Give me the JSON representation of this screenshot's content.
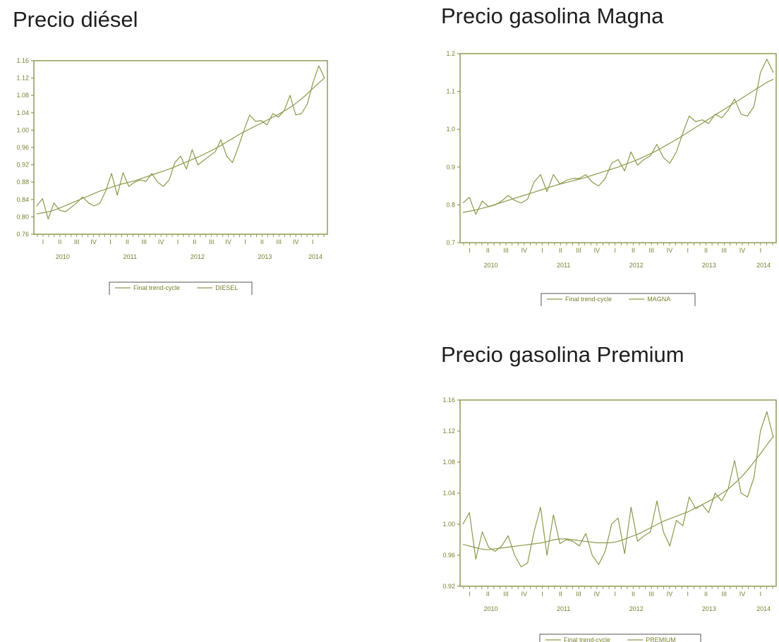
{
  "colors": {
    "series": "#8a9a4a",
    "frame": "#7f8a3a",
    "text": "#7a7f2e",
    "title": "#1e1e1e"
  },
  "chart_data": [
    {
      "type": "line",
      "title": "Precio diésel",
      "ylim": [
        0.76,
        1.16
      ],
      "yticks": [
        0.76,
        0.8,
        0.84,
        0.88,
        0.92,
        0.96,
        1.0,
        1.04,
        1.08,
        1.12,
        1.16
      ],
      "ytick_labels": [
        "0.76",
        "0.80",
        "0.84",
        "0.88",
        "0.92",
        "0.96",
        "1.00",
        "1.04",
        "1.08",
        "1.12",
        "1.16"
      ],
      "quarter_labels": [
        "I",
        "II",
        "III",
        "IV",
        "I",
        "II",
        "III",
        "IV",
        "I",
        "II",
        "III",
        "IV",
        "I",
        "II",
        "III",
        "IV",
        "I"
      ],
      "years": [
        "2010",
        "2011",
        "2012",
        "2013",
        "2014"
      ],
      "grid": false,
      "legend_position": "bottom",
      "series": [
        {
          "name": "Final trend-cycle",
          "values": [
            0.807,
            0.809,
            0.811,
            0.814,
            0.818,
            0.823,
            0.828,
            0.833,
            0.838,
            0.843,
            0.848,
            0.853,
            0.858,
            0.862,
            0.866,
            0.87,
            0.874,
            0.877,
            0.88,
            0.883,
            0.887,
            0.891,
            0.895,
            0.899,
            0.903,
            0.907,
            0.911,
            0.916,
            0.921,
            0.926,
            0.931,
            0.936,
            0.941,
            0.947,
            0.953,
            0.959,
            0.966,
            0.973,
            0.98,
            0.987,
            0.994,
            1.0,
            1.006,
            1.012,
            1.018,
            1.024,
            1.03,
            1.036,
            1.043,
            1.05,
            1.058,
            1.067,
            1.077,
            1.088,
            1.099,
            1.11,
            1.12
          ]
        },
        {
          "name": "DIESEL",
          "values": [
            0.825,
            0.842,
            0.795,
            0.832,
            0.815,
            0.812,
            0.822,
            0.833,
            0.846,
            0.832,
            0.825,
            0.832,
            0.86,
            0.9,
            0.85,
            0.902,
            0.87,
            0.88,
            0.885,
            0.882,
            0.9,
            0.88,
            0.87,
            0.885,
            0.925,
            0.94,
            0.91,
            0.955,
            0.92,
            0.93,
            0.94,
            0.95,
            0.978,
            0.94,
            0.925,
            0.96,
            1.0,
            1.035,
            1.02,
            1.022,
            1.012,
            1.038,
            1.03,
            1.045,
            1.08,
            1.035,
            1.038,
            1.06,
            1.11,
            1.148,
            1.12
          ]
        }
      ]
    },
    {
      "type": "line",
      "title": "Precio gasolina Magna",
      "ylim": [
        0.7,
        1.2
      ],
      "yticks": [
        0.7,
        0.8,
        0.9,
        1.0,
        1.1,
        1.2
      ],
      "ytick_labels": [
        "0.7",
        "0.8",
        "0.9",
        "1.0",
        "1.1",
        "1.2"
      ],
      "quarter_labels": [
        "I",
        "II",
        "III",
        "IV",
        "I",
        "II",
        "III",
        "IV",
        "I",
        "II",
        "III",
        "IV",
        "I",
        "II",
        "III",
        "IV",
        "I"
      ],
      "years": [
        "2010",
        "2011",
        "2012",
        "2013",
        "2014"
      ],
      "grid": false,
      "legend_position": "bottom",
      "series": [
        {
          "name": "Final trend-cycle",
          "values": [
            0.78,
            0.783,
            0.786,
            0.79,
            0.794,
            0.799,
            0.804,
            0.809,
            0.814,
            0.819,
            0.824,
            0.829,
            0.834,
            0.839,
            0.844,
            0.849,
            0.854,
            0.858,
            0.862,
            0.866,
            0.87,
            0.875,
            0.88,
            0.885,
            0.89,
            0.895,
            0.9,
            0.906,
            0.912,
            0.918,
            0.925,
            0.932,
            0.94,
            0.948,
            0.957,
            0.966,
            0.975,
            0.985,
            0.995,
            1.005,
            1.015,
            1.025,
            1.035,
            1.045,
            1.055,
            1.065,
            1.075,
            1.085,
            1.095,
            1.105,
            1.115,
            1.125,
            1.132
          ]
        },
        {
          "name": "MAGNA",
          "values": [
            0.805,
            0.82,
            0.775,
            0.81,
            0.795,
            0.8,
            0.81,
            0.825,
            0.812,
            0.805,
            0.815,
            0.86,
            0.88,
            0.835,
            0.88,
            0.855,
            0.865,
            0.87,
            0.87,
            0.88,
            0.86,
            0.85,
            0.87,
            0.91,
            0.92,
            0.89,
            0.94,
            0.905,
            0.92,
            0.93,
            0.96,
            0.925,
            0.91,
            0.94,
            0.99,
            1.035,
            1.02,
            1.025,
            1.015,
            1.04,
            1.03,
            1.05,
            1.08,
            1.04,
            1.035,
            1.06,
            1.15,
            1.185,
            1.15
          ]
        }
      ]
    },
    {
      "type": "line",
      "title": "Precio gasolina Premium",
      "ylim": [
        0.92,
        1.16
      ],
      "yticks": [
        0.92,
        0.96,
        1.0,
        1.04,
        1.08,
        1.12,
        1.16
      ],
      "ytick_labels": [
        "0.92",
        "0.96",
        "1.00",
        "1.04",
        "1.08",
        "1.12",
        "1.16"
      ],
      "quarter_labels": [
        "I",
        "II",
        "III",
        "IV",
        "I",
        "II",
        "III",
        "IV",
        "I",
        "II",
        "III",
        "IV",
        "I",
        "II",
        "III",
        "IV",
        "I"
      ],
      "years": [
        "2010",
        "2011",
        "2012",
        "2013",
        "2014"
      ],
      "grid": false,
      "legend_position": "bottom",
      "series": [
        {
          "name": "Final trend-cycle",
          "values": [
            0.974,
            0.972,
            0.97,
            0.968,
            0.967,
            0.968,
            0.969,
            0.97,
            0.971,
            0.972,
            0.973,
            0.974,
            0.975,
            0.976,
            0.978,
            0.98,
            0.981,
            0.981,
            0.98,
            0.979,
            0.978,
            0.977,
            0.976,
            0.976,
            0.976,
            0.977,
            0.979,
            0.982,
            0.985,
            0.988,
            0.992,
            0.996,
            1.0,
            1.004,
            1.007,
            1.01,
            1.013,
            1.016,
            1.02,
            1.024,
            1.028,
            1.032,
            1.037,
            1.042,
            1.048,
            1.055,
            1.063,
            1.072,
            1.082,
            1.092,
            1.103,
            1.113
          ]
        },
        {
          "name": "PREMIUM",
          "values": [
            1.0,
            1.015,
            0.955,
            0.99,
            0.97,
            0.965,
            0.972,
            0.985,
            0.96,
            0.945,
            0.95,
            0.99,
            1.022,
            0.96,
            1.012,
            0.975,
            0.98,
            0.978,
            0.972,
            0.988,
            0.96,
            0.948,
            0.965,
            1.0,
            1.008,
            0.962,
            1.022,
            0.978,
            0.985,
            0.99,
            1.03,
            0.99,
            0.972,
            1.005,
            0.998,
            1.035,
            1.02,
            1.025,
            1.015,
            1.04,
            1.03,
            1.045,
            1.082,
            1.04,
            1.035,
            1.06,
            1.12,
            1.145,
            1.112
          ]
        }
      ]
    }
  ]
}
